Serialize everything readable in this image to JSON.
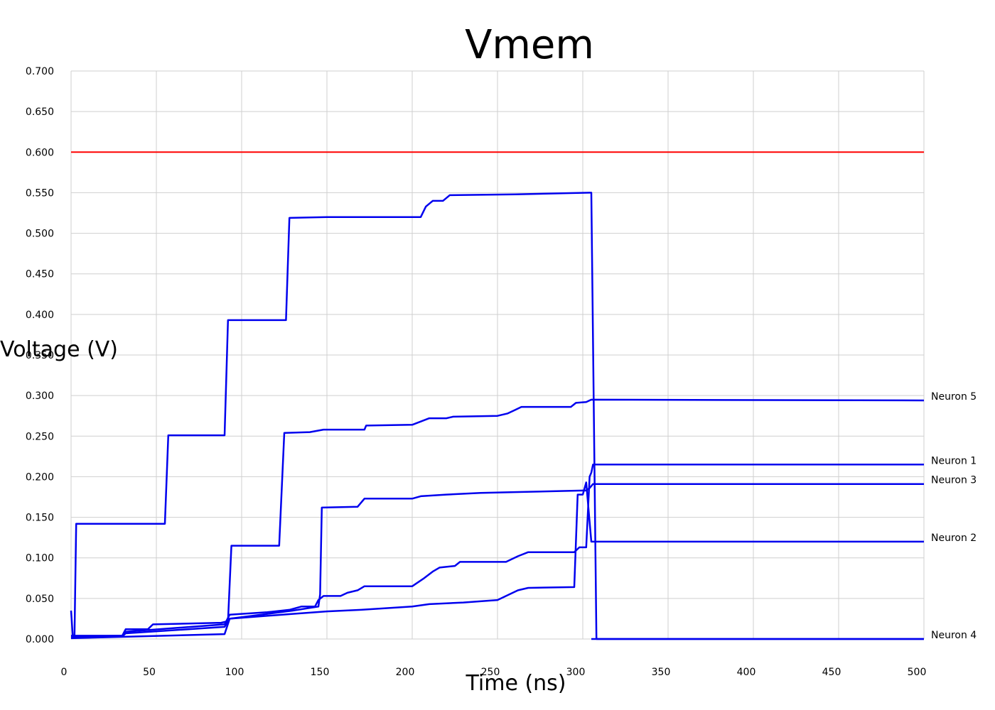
{
  "chart_data": {
    "type": "line",
    "title": "Vmem",
    "xlabel": "Time (ns)",
    "ylabel": "Voltage (V)",
    "xlim": [
      0,
      500
    ],
    "ylim": [
      0,
      0.7
    ],
    "xticks": [
      0,
      50,
      100,
      150,
      200,
      250,
      300,
      350,
      400,
      450,
      500
    ],
    "yticks": [
      "0.000",
      "0.050",
      "0.100",
      "0.150",
      "0.200",
      "0.250",
      "0.300",
      "0.350",
      "0.400",
      "0.450",
      "0.500",
      "0.550",
      "0.600",
      "0.650",
      "0.700"
    ],
    "grid": true,
    "threshold": {
      "y": 0.6,
      "color": "#ff0000"
    },
    "series": [
      {
        "name": "",
        "color": "#0000ee",
        "points": [
          [
            0,
            0.035
          ],
          [
            1,
            0.003
          ],
          [
            2,
            0.003
          ],
          [
            3,
            0.142
          ],
          [
            55,
            0.142
          ],
          [
            57,
            0.251
          ],
          [
            90,
            0.251
          ],
          [
            92,
            0.393
          ],
          [
            126,
            0.393
          ],
          [
            128,
            0.519
          ],
          [
            150,
            0.52
          ],
          [
            205,
            0.52
          ],
          [
            208,
            0.533
          ],
          [
            212,
            0.54
          ],
          [
            218,
            0.54
          ],
          [
            222,
            0.547
          ],
          [
            260,
            0.548
          ],
          [
            304,
            0.55
          ],
          [
            305,
            0.55
          ],
          [
            308,
            0.0
          ],
          [
            500,
            0.0
          ]
        ]
      },
      {
        "name": "Neuron 5",
        "color": "#0000ee",
        "points": [
          [
            0,
            0.004
          ],
          [
            30,
            0.004
          ],
          [
            32,
            0.012
          ],
          [
            45,
            0.012
          ],
          [
            48,
            0.018
          ],
          [
            88,
            0.02
          ],
          [
            92,
            0.022
          ],
          [
            94,
            0.115
          ],
          [
            122,
            0.115
          ],
          [
            125,
            0.254
          ],
          [
            140,
            0.255
          ],
          [
            148,
            0.258
          ],
          [
            172,
            0.258
          ],
          [
            173,
            0.263
          ],
          [
            200,
            0.264
          ],
          [
            205,
            0.268
          ],
          [
            210,
            0.272
          ],
          [
            220,
            0.272
          ],
          [
            224,
            0.274
          ],
          [
            250,
            0.275
          ],
          [
            256,
            0.278
          ],
          [
            260,
            0.282
          ],
          [
            264,
            0.286
          ],
          [
            293,
            0.286
          ],
          [
            296,
            0.291
          ],
          [
            302,
            0.292
          ],
          [
            305,
            0.295
          ],
          [
            500,
            0.294
          ]
        ]
      },
      {
        "name": "Neuron 1",
        "color": "#0000ee",
        "points": [
          [
            0,
            0.003
          ],
          [
            30,
            0.004
          ],
          [
            32,
            0.009
          ],
          [
            90,
            0.018
          ],
          [
            93,
            0.03
          ],
          [
            115,
            0.033
          ],
          [
            128,
            0.036
          ],
          [
            135,
            0.04
          ],
          [
            143,
            0.04
          ],
          [
            145,
            0.048
          ],
          [
            148,
            0.053
          ],
          [
            158,
            0.053
          ],
          [
            162,
            0.057
          ],
          [
            168,
            0.06
          ],
          [
            172,
            0.065
          ],
          [
            200,
            0.065
          ],
          [
            207,
            0.075
          ],
          [
            212,
            0.083
          ],
          [
            216,
            0.088
          ],
          [
            225,
            0.09
          ],
          [
            228,
            0.095
          ],
          [
            255,
            0.095
          ],
          [
            262,
            0.102
          ],
          [
            268,
            0.107
          ],
          [
            295,
            0.107
          ],
          [
            298,
            0.113
          ],
          [
            302,
            0.113
          ],
          [
            304,
            0.2
          ],
          [
            305,
            0.205
          ],
          [
            306,
            0.215
          ],
          [
            500,
            0.215
          ]
        ]
      },
      {
        "name": "Neuron 3",
        "color": "#0000ee",
        "points": [
          [
            0,
            0.002
          ],
          [
            30,
            0.003
          ],
          [
            32,
            0.007
          ],
          [
            90,
            0.015
          ],
          [
            93,
            0.025
          ],
          [
            130,
            0.035
          ],
          [
            145,
            0.04
          ],
          [
            146,
            0.055
          ],
          [
            147,
            0.162
          ],
          [
            168,
            0.163
          ],
          [
            172,
            0.173
          ],
          [
            200,
            0.173
          ],
          [
            205,
            0.176
          ],
          [
            220,
            0.178
          ],
          [
            240,
            0.18
          ],
          [
            260,
            0.181
          ],
          [
            300,
            0.183
          ],
          [
            302,
            0.183
          ],
          [
            304,
            0.186
          ],
          [
            306,
            0.191
          ],
          [
            500,
            0.191
          ]
        ]
      },
      {
        "name": "Neuron 2",
        "color": "#0000ee",
        "points": [
          [
            0,
            0.001
          ],
          [
            90,
            0.006
          ],
          [
            93,
            0.025
          ],
          [
            130,
            0.031
          ],
          [
            150,
            0.034
          ],
          [
            170,
            0.036
          ],
          [
            200,
            0.04
          ],
          [
            210,
            0.043
          ],
          [
            230,
            0.045
          ],
          [
            250,
            0.048
          ],
          [
            255,
            0.053
          ],
          [
            262,
            0.06
          ],
          [
            268,
            0.063
          ],
          [
            295,
            0.064
          ],
          [
            297,
            0.178
          ],
          [
            300,
            0.178
          ],
          [
            302,
            0.193
          ],
          [
            305,
            0.12
          ],
          [
            500,
            0.12
          ]
        ]
      },
      {
        "name": "Neuron 4",
        "color": "#0000ee",
        "points": [
          [
            305,
            0.0
          ],
          [
            500,
            0.0
          ]
        ]
      }
    ]
  }
}
